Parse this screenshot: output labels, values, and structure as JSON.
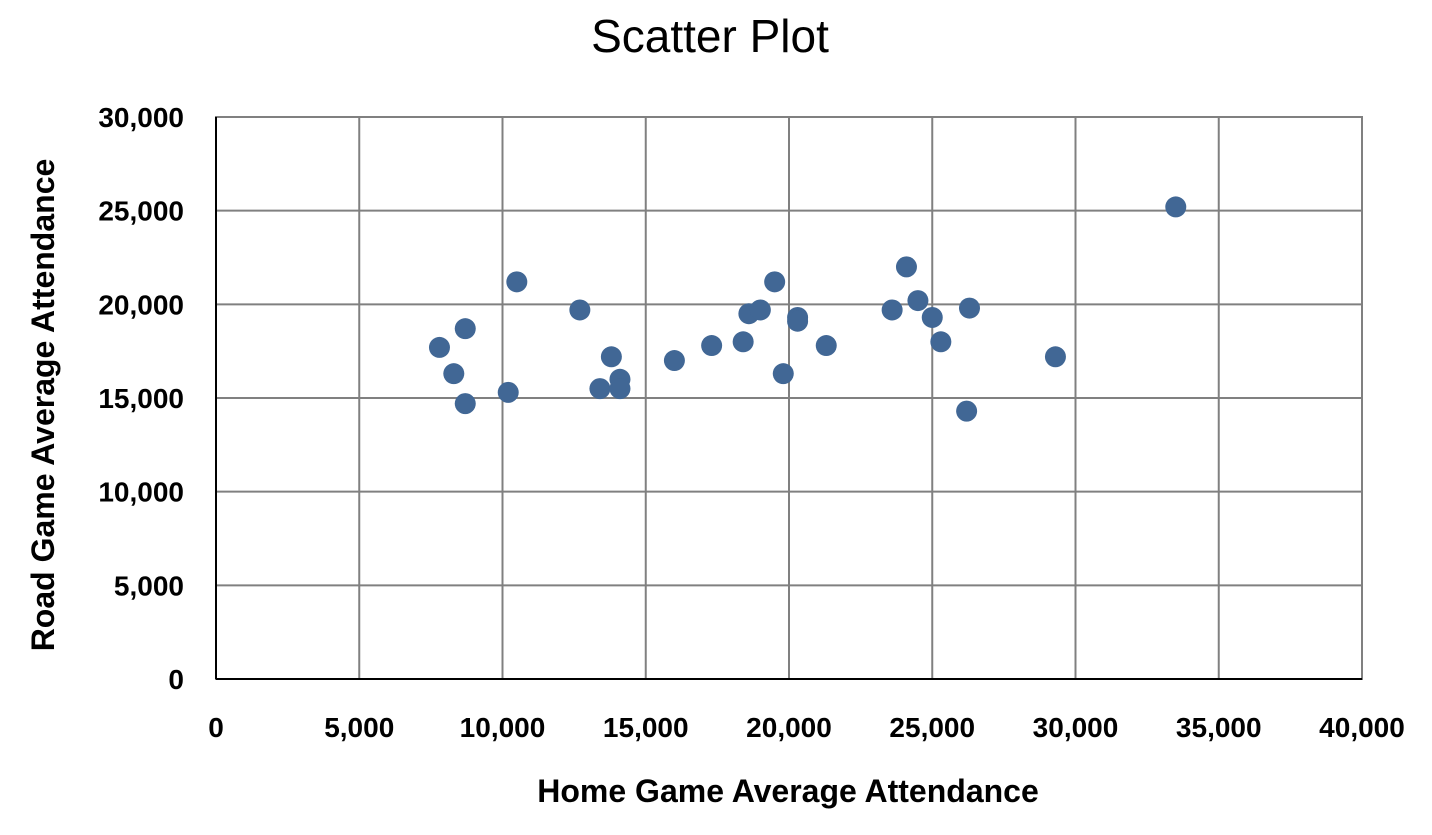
{
  "chart_data": {
    "type": "scatter",
    "title": "Scatter Plot",
    "xlabel": "Home Game Average Attendance",
    "ylabel": "Road Game Average Attendance",
    "xlim": [
      0,
      40000
    ],
    "ylim": [
      0,
      30000
    ],
    "x_ticks": [
      0,
      5000,
      10000,
      15000,
      20000,
      25000,
      30000,
      35000,
      40000
    ],
    "y_ticks": [
      0,
      5000,
      10000,
      15000,
      20000,
      25000,
      30000
    ],
    "x_tick_labels": [
      "0",
      "5,000",
      "10,000",
      "15,000",
      "20,000",
      "25,000",
      "30,000",
      "35,000",
      "40,000"
    ],
    "y_tick_labels": [
      "0",
      "5,000",
      "10,000",
      "15,000",
      "20,000",
      "25,000",
      "30,000"
    ],
    "grid": true,
    "marker_color": "#416795",
    "points": [
      {
        "x": 7800,
        "y": 17700
      },
      {
        "x": 8300,
        "y": 16300
      },
      {
        "x": 8700,
        "y": 18700
      },
      {
        "x": 8700,
        "y": 14700
      },
      {
        "x": 10200,
        "y": 15300
      },
      {
        "x": 10500,
        "y": 21200
      },
      {
        "x": 12700,
        "y": 19700
      },
      {
        "x": 13400,
        "y": 15500
      },
      {
        "x": 13800,
        "y": 17200
      },
      {
        "x": 14100,
        "y": 16000
      },
      {
        "x": 14100,
        "y": 15500
      },
      {
        "x": 16000,
        "y": 17000
      },
      {
        "x": 17300,
        "y": 17800
      },
      {
        "x": 18400,
        "y": 18000
      },
      {
        "x": 18600,
        "y": 19500
      },
      {
        "x": 19000,
        "y": 19700
      },
      {
        "x": 19500,
        "y": 21200
      },
      {
        "x": 19800,
        "y": 16300
      },
      {
        "x": 20300,
        "y": 19300
      },
      {
        "x": 20300,
        "y": 19100
      },
      {
        "x": 21300,
        "y": 17800
      },
      {
        "x": 23600,
        "y": 19700
      },
      {
        "x": 24100,
        "y": 22000
      },
      {
        "x": 24500,
        "y": 20200
      },
      {
        "x": 25000,
        "y": 19300
      },
      {
        "x": 25300,
        "y": 18000
      },
      {
        "x": 26200,
        "y": 14300
      },
      {
        "x": 26300,
        "y": 19800
      },
      {
        "x": 29300,
        "y": 17200
      },
      {
        "x": 33500,
        "y": 25200
      }
    ]
  }
}
